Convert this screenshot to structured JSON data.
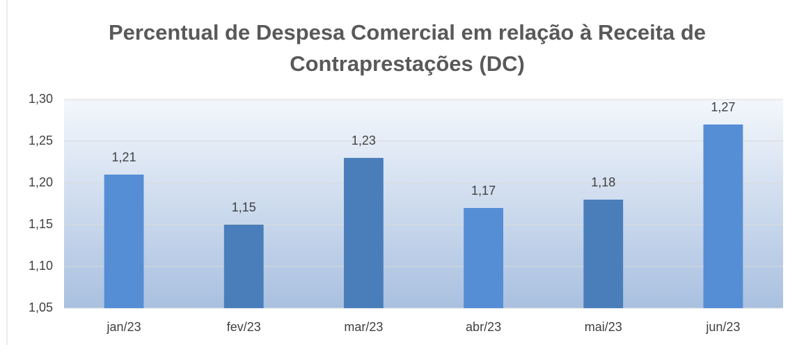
{
  "chart_data": {
    "type": "bar",
    "title": "Percentual de Despesa Comercial em relação à Receita de Contraprestações (DC)",
    "categories": [
      "jan/23",
      "fev/23",
      "mar/23",
      "abr/23",
      "mai/23",
      "jun/23"
    ],
    "values": [
      1.21,
      1.15,
      1.23,
      1.17,
      1.18,
      1.27
    ],
    "value_labels": [
      "1,21",
      "1,15",
      "1,23",
      "1,17",
      "1,18",
      "1,27"
    ],
    "colors": [
      "#558ed5",
      "#4a7ebb",
      "#4a7ebb",
      "#558ed5",
      "#4a7ebb",
      "#558ed5"
    ],
    "ylim": [
      1.05,
      1.3
    ],
    "yticks": [
      {
        "value": 1.05,
        "label": "1,05"
      },
      {
        "value": 1.1,
        "label": "1,10"
      },
      {
        "value": 1.15,
        "label": "1,15"
      },
      {
        "value": 1.2,
        "label": "1,20"
      },
      {
        "value": 1.25,
        "label": "1,25"
      },
      {
        "value": 1.3,
        "label": "1,30"
      }
    ],
    "grid": true
  }
}
